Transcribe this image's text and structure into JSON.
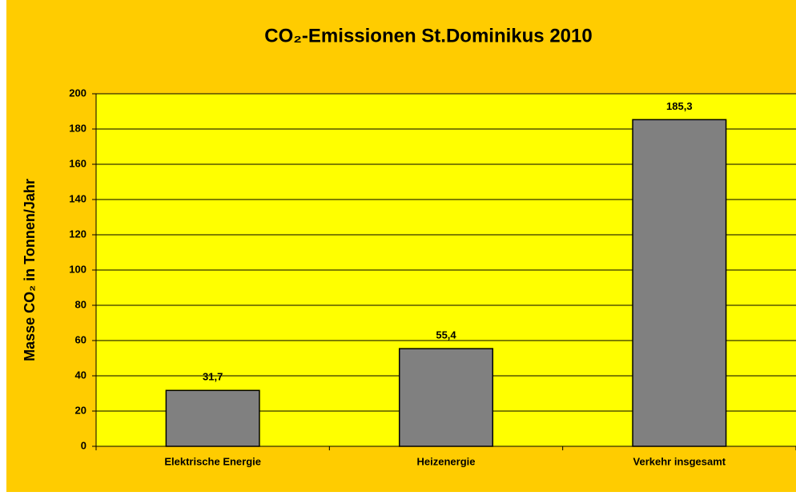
{
  "chart_data": {
    "type": "bar",
    "title": "CO₂-Emissionen St.Dominikus 2010",
    "y_label": "Masse CO₂ in Tonnen/Jahr",
    "categories": [
      "Elektrische Energie",
      "Heizenergie",
      "Verkehr insgesamt"
    ],
    "values": [
      31.7,
      55.4,
      185.3
    ],
    "value_labels": [
      "31,7",
      "55,4",
      "185,3"
    ],
    "color": "#808080",
    "ylim": [
      0,
      200
    ],
    "yticks": [
      0,
      20,
      40,
      60,
      80,
      100,
      120,
      140,
      160,
      180,
      200
    ],
    "grid": true
  }
}
